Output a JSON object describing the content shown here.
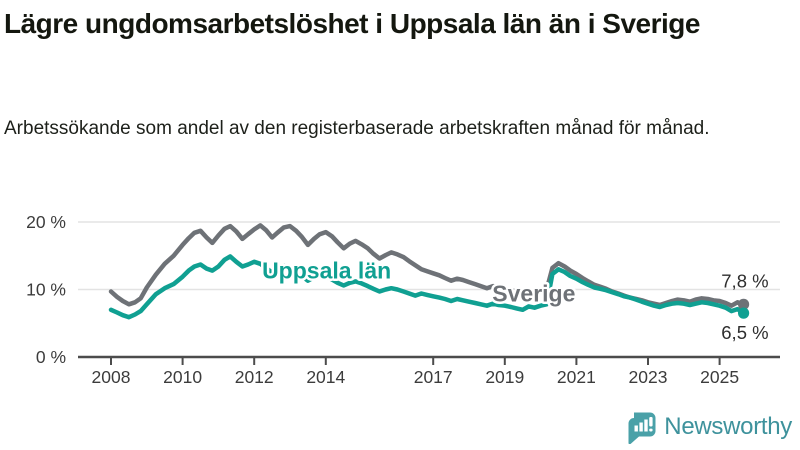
{
  "header": {
    "title": "Lägre ungdomsarbetslöshet i Uppsala län än i Sverige",
    "subtitle": "Arbetssökande som andel av den registerbaserade arbetskraften månad för månad."
  },
  "chart_data": {
    "type": "line",
    "title": "",
    "xlabel": "",
    "ylabel": "",
    "xlim": [
      2007.85,
      2026.7
    ],
    "ylim": [
      0,
      21.8
    ],
    "grid": "horizontal",
    "colors": {
      "grid": "#e3e3e3",
      "axis": "#4c4c4c",
      "tick_text": "#3c3c3c",
      "value_label_text": "#2e2e2e"
    },
    "x_ticks": [
      {
        "value": 2008,
        "label": "2008"
      },
      {
        "value": 2010,
        "label": "2010"
      },
      {
        "value": 2012,
        "label": "2012"
      },
      {
        "value": 2014,
        "label": "2014"
      },
      {
        "value": 2017,
        "label": "2017"
      },
      {
        "value": 2019,
        "label": "2019"
      },
      {
        "value": 2021,
        "label": "2021"
      },
      {
        "value": 2023,
        "label": "2023"
      },
      {
        "value": 2025,
        "label": "2025"
      }
    ],
    "y_ticks": [
      {
        "value": 0,
        "label": "0 %"
      },
      {
        "value": 10,
        "label": "10 %"
      },
      {
        "value": 20,
        "label": "20 %"
      }
    ],
    "series": [
      {
        "name": "Sverige",
        "color": "#6e7277",
        "label": {
          "text": "Sverige",
          "x": 2018.65,
          "y": 8.2
        },
        "end_label": "7,8 %",
        "end_value": 7.8,
        "points": [
          [
            2008.0,
            9.7
          ],
          [
            2008.17,
            8.9
          ],
          [
            2008.33,
            8.3
          ],
          [
            2008.5,
            7.8
          ],
          [
            2008.67,
            8.1
          ],
          [
            2008.83,
            8.7
          ],
          [
            2009.0,
            10.3
          ],
          [
            2009.25,
            12.2
          ],
          [
            2009.5,
            13.8
          ],
          [
            2009.75,
            15.0
          ],
          [
            2010.0,
            16.6
          ],
          [
            2010.17,
            17.6
          ],
          [
            2010.33,
            18.4
          ],
          [
            2010.5,
            18.7
          ],
          [
            2010.67,
            17.7
          ],
          [
            2010.83,
            16.9
          ],
          [
            2011.0,
            18.0
          ],
          [
            2011.17,
            19.0
          ],
          [
            2011.33,
            19.4
          ],
          [
            2011.5,
            18.6
          ],
          [
            2011.67,
            17.5
          ],
          [
            2011.83,
            18.2
          ],
          [
            2012.0,
            18.9
          ],
          [
            2012.17,
            19.5
          ],
          [
            2012.33,
            18.8
          ],
          [
            2012.5,
            17.7
          ],
          [
            2012.67,
            18.5
          ],
          [
            2012.83,
            19.2
          ],
          [
            2013.0,
            19.4
          ],
          [
            2013.17,
            18.7
          ],
          [
            2013.33,
            17.8
          ],
          [
            2013.5,
            16.6
          ],
          [
            2013.67,
            17.5
          ],
          [
            2013.83,
            18.2
          ],
          [
            2014.0,
            18.5
          ],
          [
            2014.17,
            17.9
          ],
          [
            2014.33,
            17.0
          ],
          [
            2014.5,
            16.1
          ],
          [
            2014.67,
            16.8
          ],
          [
            2014.83,
            17.2
          ],
          [
            2015.0,
            16.7
          ],
          [
            2015.17,
            16.1
          ],
          [
            2015.33,
            15.3
          ],
          [
            2015.5,
            14.6
          ],
          [
            2015.67,
            15.1
          ],
          [
            2015.83,
            15.5
          ],
          [
            2016.0,
            15.2
          ],
          [
            2016.17,
            14.8
          ],
          [
            2016.33,
            14.2
          ],
          [
            2016.5,
            13.6
          ],
          [
            2016.67,
            13.0
          ],
          [
            2016.83,
            12.7
          ],
          [
            2017.0,
            12.4
          ],
          [
            2017.17,
            12.1
          ],
          [
            2017.33,
            11.7
          ],
          [
            2017.5,
            11.3
          ],
          [
            2017.67,
            11.6
          ],
          [
            2017.83,
            11.4
          ],
          [
            2018.0,
            11.1
          ],
          [
            2018.17,
            10.8
          ],
          [
            2018.33,
            10.5
          ],
          [
            2018.5,
            10.2
          ],
          [
            2018.67,
            10.5
          ],
          [
            2018.83,
            10.3
          ],
          [
            2019.0,
            10.1
          ],
          [
            2019.17,
            9.9
          ],
          [
            2019.33,
            9.7
          ],
          [
            2019.5,
            9.4
          ],
          [
            2019.67,
            9.8
          ],
          [
            2019.83,
            9.6
          ],
          [
            2020.0,
            9.8
          ],
          [
            2020.17,
            10.0
          ],
          [
            2020.33,
            13.2
          ],
          [
            2020.5,
            13.9
          ],
          [
            2020.67,
            13.4
          ],
          [
            2020.83,
            12.8
          ],
          [
            2021.0,
            12.3
          ],
          [
            2021.17,
            11.7
          ],
          [
            2021.33,
            11.2
          ],
          [
            2021.5,
            10.7
          ],
          [
            2021.67,
            10.4
          ],
          [
            2021.83,
            10.1
          ],
          [
            2022.0,
            9.7
          ],
          [
            2022.17,
            9.4
          ],
          [
            2022.33,
            9.1
          ],
          [
            2022.5,
            8.8
          ],
          [
            2022.67,
            8.6
          ],
          [
            2022.83,
            8.4
          ],
          [
            2023.0,
            8.1
          ],
          [
            2023.17,
            7.9
          ],
          [
            2023.33,
            7.7
          ],
          [
            2023.5,
            8.0
          ],
          [
            2023.67,
            8.3
          ],
          [
            2023.83,
            8.5
          ],
          [
            2024.0,
            8.4
          ],
          [
            2024.17,
            8.2
          ],
          [
            2024.33,
            8.5
          ],
          [
            2024.5,
            8.7
          ],
          [
            2024.67,
            8.6
          ],
          [
            2024.83,
            8.4
          ],
          [
            2025.0,
            8.3
          ],
          [
            2025.17,
            8.0
          ],
          [
            2025.33,
            7.6
          ],
          [
            2025.5,
            8.1
          ],
          [
            2025.67,
            7.8
          ]
        ]
      },
      {
        "name": "Uppsala län",
        "color": "#10a092",
        "label": {
          "text": "Uppsala län",
          "x": 2012.22,
          "y": 11.6
        },
        "end_label": "6,5 %",
        "end_value": 6.5,
        "points": [
          [
            2008.0,
            7.0
          ],
          [
            2008.17,
            6.6
          ],
          [
            2008.33,
            6.2
          ],
          [
            2008.5,
            5.9
          ],
          [
            2008.67,
            6.3
          ],
          [
            2008.83,
            6.8
          ],
          [
            2009.0,
            7.8
          ],
          [
            2009.25,
            9.3
          ],
          [
            2009.5,
            10.2
          ],
          [
            2009.75,
            10.8
          ],
          [
            2010.0,
            11.9
          ],
          [
            2010.17,
            12.8
          ],
          [
            2010.33,
            13.4
          ],
          [
            2010.5,
            13.7
          ],
          [
            2010.67,
            13.1
          ],
          [
            2010.83,
            12.8
          ],
          [
            2011.0,
            13.4
          ],
          [
            2011.17,
            14.4
          ],
          [
            2011.33,
            14.9
          ],
          [
            2011.5,
            14.1
          ],
          [
            2011.67,
            13.4
          ],
          [
            2011.83,
            13.7
          ],
          [
            2012.0,
            14.1
          ],
          [
            2012.17,
            13.8
          ],
          [
            2012.33,
            13.2
          ],
          [
            2012.5,
            12.5
          ],
          [
            2012.67,
            13.1
          ],
          [
            2012.83,
            13.5
          ],
          [
            2013.0,
            13.2
          ],
          [
            2013.17,
            12.7
          ],
          [
            2013.33,
            12.0
          ],
          [
            2013.5,
            11.3
          ],
          [
            2013.67,
            11.8
          ],
          [
            2013.83,
            12.1
          ],
          [
            2014.0,
            11.9
          ],
          [
            2014.17,
            11.5
          ],
          [
            2014.33,
            11.0
          ],
          [
            2014.5,
            10.6
          ],
          [
            2014.67,
            11.0
          ],
          [
            2014.83,
            11.2
          ],
          [
            2015.0,
            10.9
          ],
          [
            2015.17,
            10.5
          ],
          [
            2015.33,
            10.1
          ],
          [
            2015.5,
            9.7
          ],
          [
            2015.67,
            10.0
          ],
          [
            2015.83,
            10.2
          ],
          [
            2016.0,
            10.0
          ],
          [
            2016.17,
            9.7
          ],
          [
            2016.33,
            9.4
          ],
          [
            2016.5,
            9.1
          ],
          [
            2016.67,
            9.4
          ],
          [
            2016.83,
            9.2
          ],
          [
            2017.0,
            9.0
          ],
          [
            2017.17,
            8.8
          ],
          [
            2017.33,
            8.6
          ],
          [
            2017.5,
            8.3
          ],
          [
            2017.67,
            8.6
          ],
          [
            2017.83,
            8.4
          ],
          [
            2018.0,
            8.2
          ],
          [
            2018.17,
            8.0
          ],
          [
            2018.33,
            7.8
          ],
          [
            2018.5,
            7.6
          ],
          [
            2018.67,
            7.9
          ],
          [
            2018.83,
            7.7
          ],
          [
            2019.0,
            7.6
          ],
          [
            2019.17,
            7.4
          ],
          [
            2019.33,
            7.2
          ],
          [
            2019.5,
            7.0
          ],
          [
            2019.67,
            7.5
          ],
          [
            2019.83,
            7.3
          ],
          [
            2020.0,
            7.6
          ],
          [
            2020.17,
            7.8
          ],
          [
            2020.33,
            12.3
          ],
          [
            2020.5,
            13.0
          ],
          [
            2020.67,
            12.6
          ],
          [
            2020.83,
            12.0
          ],
          [
            2021.0,
            11.6
          ],
          [
            2021.17,
            11.1
          ],
          [
            2021.33,
            10.7
          ],
          [
            2021.5,
            10.3
          ],
          [
            2021.67,
            10.1
          ],
          [
            2021.83,
            9.9
          ],
          [
            2022.0,
            9.6
          ],
          [
            2022.17,
            9.3
          ],
          [
            2022.33,
            9.0
          ],
          [
            2022.5,
            8.8
          ],
          [
            2022.67,
            8.5
          ],
          [
            2022.83,
            8.2
          ],
          [
            2023.0,
            7.9
          ],
          [
            2023.17,
            7.6
          ],
          [
            2023.33,
            7.4
          ],
          [
            2023.5,
            7.7
          ],
          [
            2023.67,
            7.9
          ],
          [
            2023.83,
            8.0
          ],
          [
            2024.0,
            7.9
          ],
          [
            2024.17,
            7.7
          ],
          [
            2024.33,
            7.9
          ],
          [
            2024.5,
            8.1
          ],
          [
            2024.67,
            8.0
          ],
          [
            2024.83,
            7.8
          ],
          [
            2025.0,
            7.6
          ],
          [
            2025.17,
            7.3
          ],
          [
            2025.33,
            6.8
          ],
          [
            2025.5,
            7.1
          ],
          [
            2025.67,
            6.5
          ]
        ]
      }
    ],
    "legend_position": "inline-labels"
  },
  "footer": {
    "brand": "Newsworthy",
    "brand_color": "#3e929c",
    "icon_color": "#4aa1a8"
  }
}
